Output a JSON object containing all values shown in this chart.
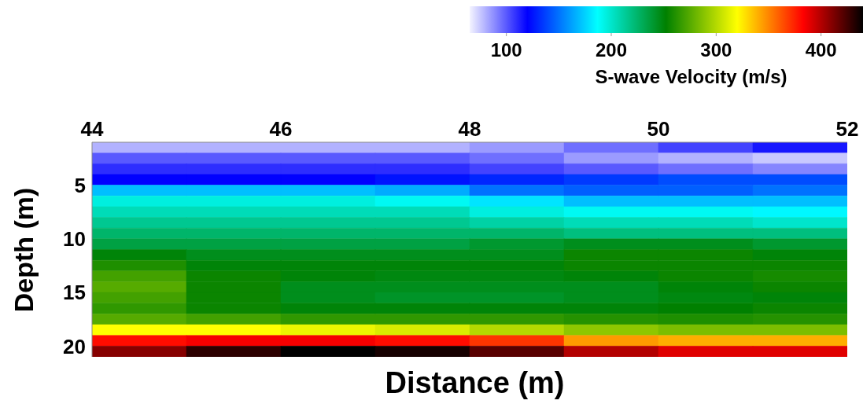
{
  "chart_data": {
    "type": "heatmap",
    "xlabel": "Distance (m)",
    "ylabel": "Depth (m)",
    "clabel": "S-wave Velocity (m/s)",
    "x": [
      44.5,
      45.5,
      46.5,
      47.5,
      48.5,
      49.5,
      50.5,
      51.5
    ],
    "y": [
      1.5,
      2.5,
      3.5,
      4.5,
      5.5,
      6.5,
      7.5,
      8.5,
      9.5,
      10.5,
      11.5,
      12.5,
      13.5,
      14.5,
      15.5,
      16.5,
      17.5,
      18.5,
      19.5,
      20.5
    ],
    "cells": [
      [
        80,
        80,
        80,
        80,
        85,
        95,
        105,
        115
      ],
      [
        100,
        100,
        100,
        100,
        95,
        85,
        80,
        75
      ],
      [
        110,
        110,
        110,
        110,
        105,
        100,
        95,
        90
      ],
      [
        120,
        120,
        120,
        125,
        130,
        135,
        140,
        140
      ],
      [
        170,
        170,
        170,
        165,
        150,
        145,
        145,
        150
      ],
      [
        195,
        195,
        195,
        190,
        180,
        170,
        170,
        170
      ],
      [
        205,
        205,
        205,
        205,
        195,
        190,
        190,
        185
      ],
      [
        215,
        215,
        215,
        215,
        210,
        205,
        205,
        200
      ],
      [
        225,
        225,
        225,
        225,
        225,
        220,
        220,
        220
      ],
      [
        235,
        235,
        235,
        235,
        240,
        245,
        245,
        240
      ],
      [
        250,
        245,
        245,
        245,
        245,
        255,
        255,
        250
      ],
      [
        260,
        250,
        250,
        250,
        250,
        255,
        255,
        255
      ],
      [
        270,
        255,
        250,
        248,
        248,
        250,
        255,
        258
      ],
      [
        275,
        255,
        245,
        245,
        245,
        245,
        250,
        255
      ],
      [
        270,
        255,
        245,
        242,
        242,
        245,
        248,
        250
      ],
      [
        265,
        255,
        250,
        250,
        250,
        250,
        252,
        255
      ],
      [
        275,
        270,
        265,
        265,
        265,
        262,
        260,
        262
      ],
      [
        320,
        320,
        315,
        310,
        300,
        290,
        285,
        285
      ],
      [
        380,
        385,
        385,
        380,
        370,
        345,
        340,
        340
      ],
      [
        410,
        430,
        440,
        435,
        420,
        400,
        390,
        390
      ]
    ],
    "xlim": [
      44,
      52
    ],
    "xticks": [
      44,
      46,
      48,
      50,
      52
    ],
    "ylim": [
      21,
      1
    ],
    "yticks": [
      5,
      10,
      15,
      20
    ],
    "clim": [
      65,
      440
    ],
    "cticks": [
      100,
      200,
      300,
      400
    ]
  }
}
